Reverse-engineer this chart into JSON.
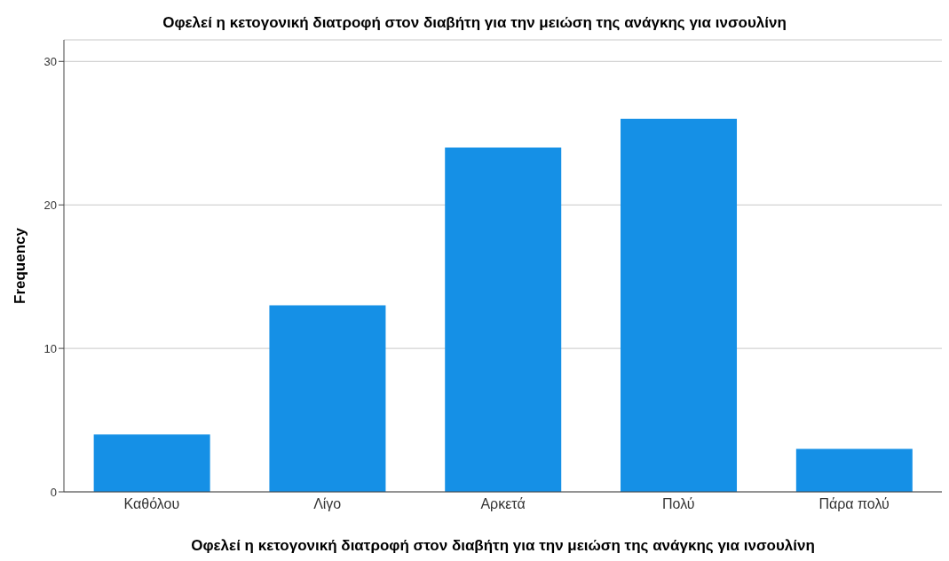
{
  "chart_data": {
    "type": "bar",
    "title": "Οφελεί η κετογονική διατροφή στον διαβήτη για την μειώση της ανάγκης για ινσουλίνη",
    "xlabel": "Οφελεί η κετογονική διατροφή στον διαβήτη για την μειώση της ανάγκης για ινσουλίνη",
    "ylabel": "Frequency",
    "categories": [
      "Καθόλου",
      "Λίγο",
      "Αρκετά",
      "Πολύ",
      "Πάρα πολύ"
    ],
    "values": [
      4,
      13,
      24,
      26,
      3
    ],
    "color": "#1590e6",
    "ylim": [
      0,
      31.5
    ],
    "yticks": [
      0,
      10,
      20,
      30
    ],
    "grid": "y"
  }
}
